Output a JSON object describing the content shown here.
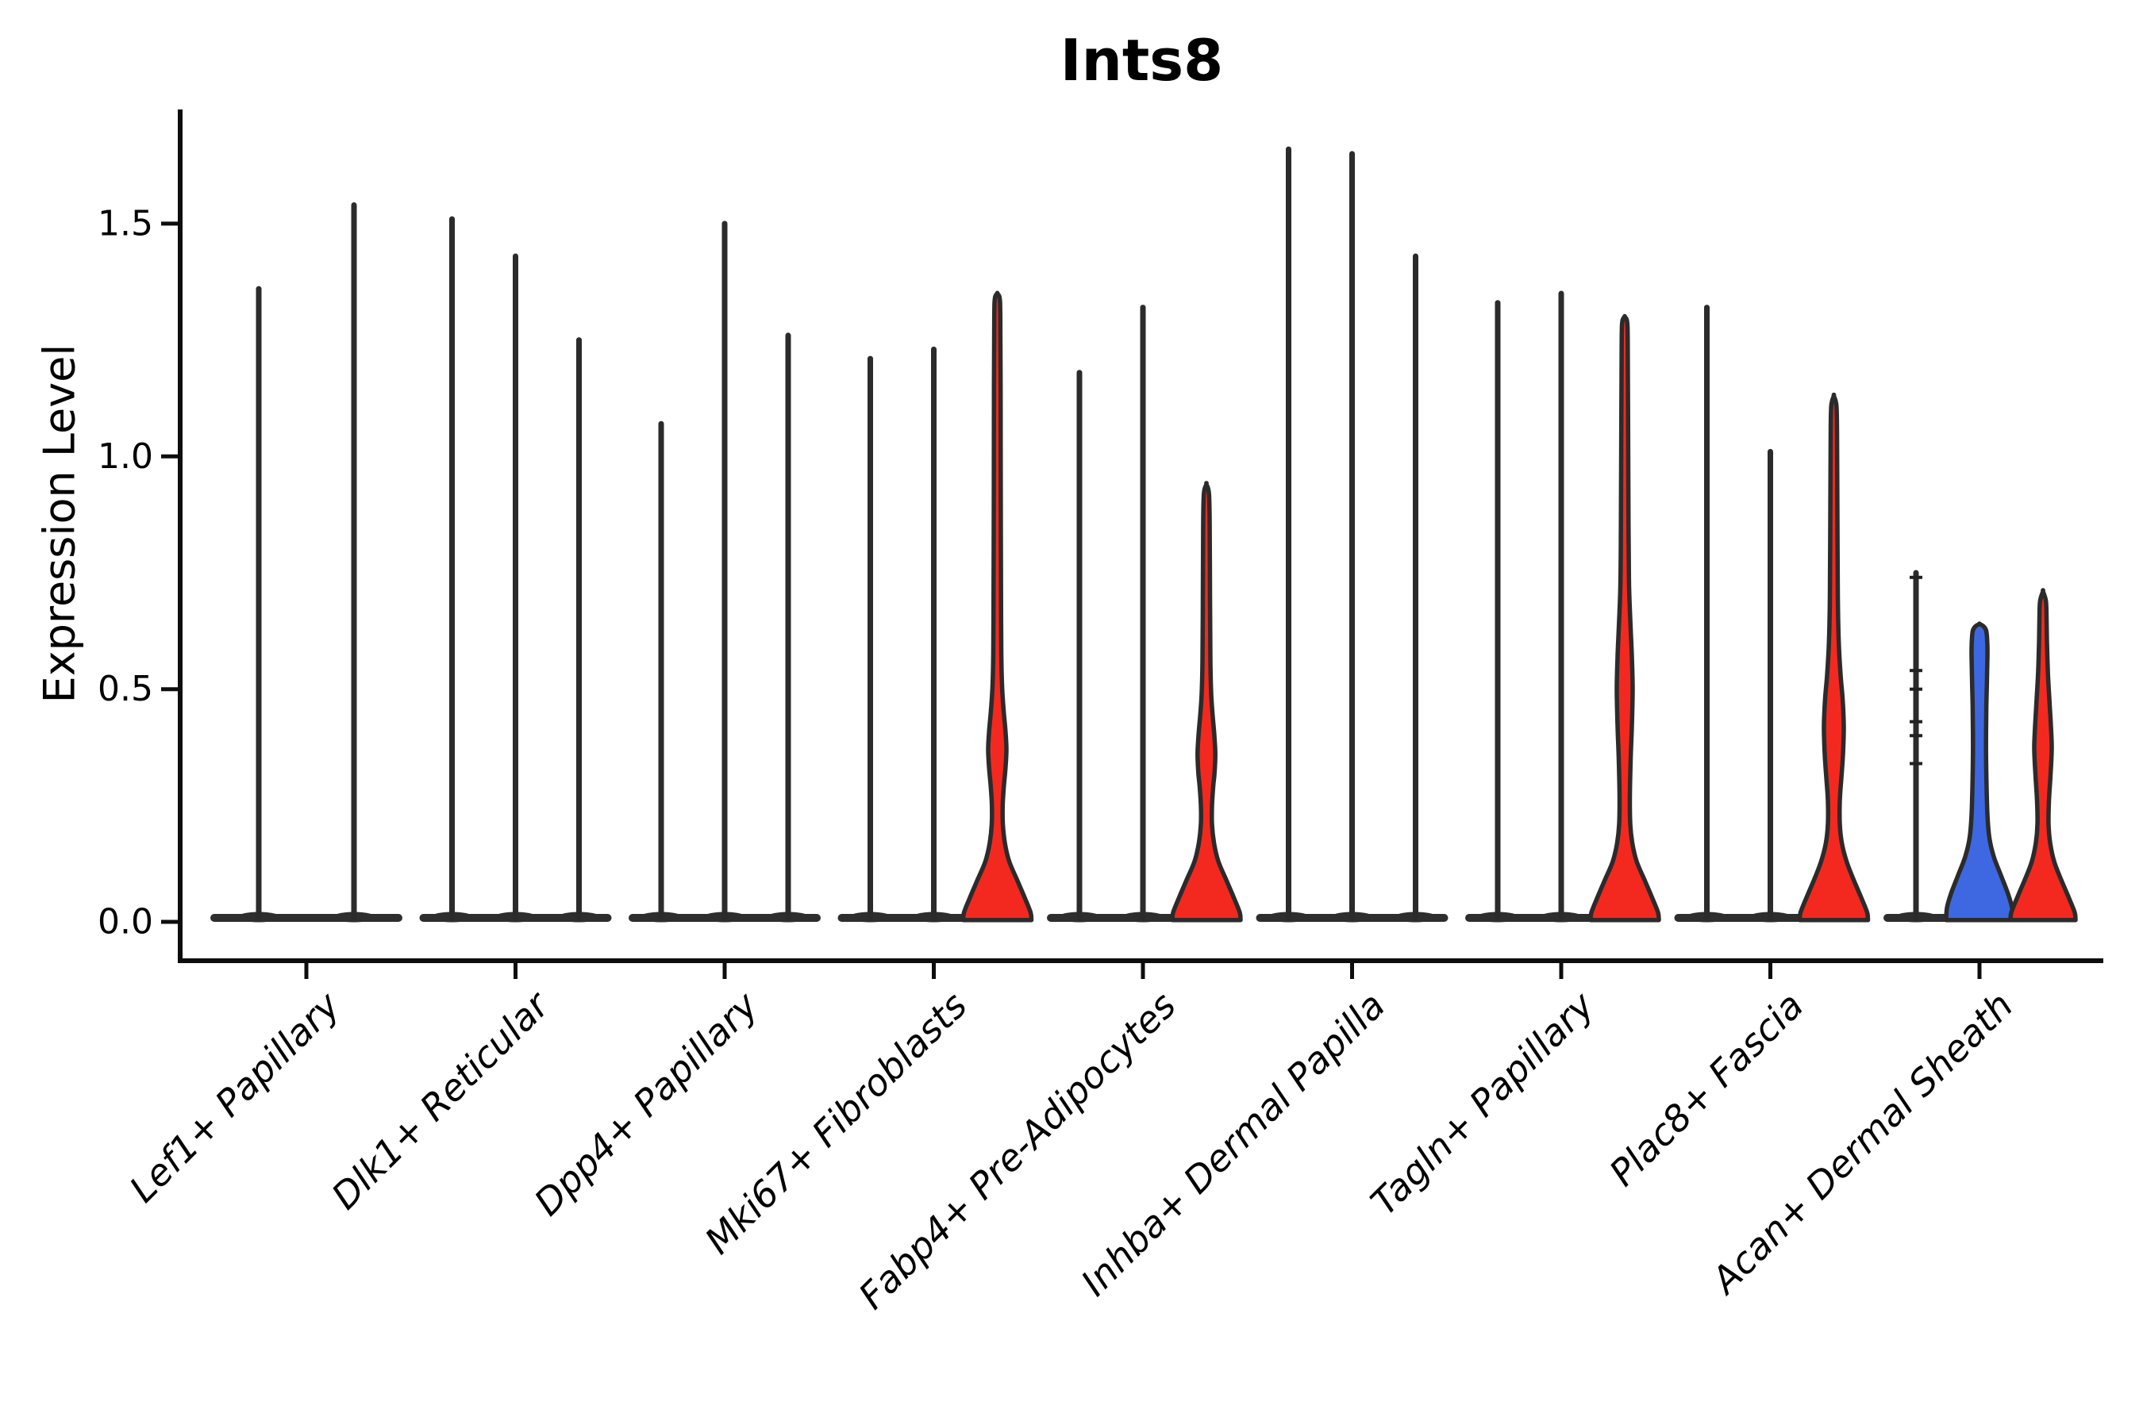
{
  "chart_data": {
    "type": "violin",
    "title": "Ints8",
    "ylabel": "Expression Level",
    "xlabel": "",
    "ylim": [
      0,
      1.74
    ],
    "yticks": [
      "0.0",
      "0.5",
      "1.0",
      "1.5"
    ],
    "ytick_values": [
      0,
      0.5,
      1.0,
      1.5
    ],
    "grid": false,
    "legend": "none",
    "categories": [
      "Lef1+ Papillary",
      "Dlk1+ Reticular",
      "Dpp4+ Papillary",
      "Mki67+ Fibroblasts",
      "Fabp4+ Pre-Adipocytes",
      "Inhba+ Dermal Papilla",
      "Tagln+ Papillary",
      "Plac8+ Fascia",
      "Acan+ Dermal Sheath"
    ],
    "colors": {
      "red": "#f3291f",
      "blue": "#3e68e1",
      "outline": "#2b2b2b",
      "axis": "#0d0d0d",
      "baseline_bar": "#2e2e2e",
      "text": "#000000",
      "background": "#ffffff"
    },
    "groups": [
      {
        "category": "Lef1+ Papillary",
        "violins": [
          {
            "max": 1.36,
            "fill": "none"
          },
          {
            "max": 1.54,
            "fill": "none"
          }
        ]
      },
      {
        "category": "Dlk1+ Reticular",
        "violins": [
          {
            "max": 1.51,
            "fill": "none"
          },
          {
            "max": 1.43,
            "fill": "none"
          },
          {
            "max": 1.25,
            "fill": "none"
          }
        ]
      },
      {
        "category": "Dpp4+ Papillary",
        "violins": [
          {
            "max": 1.07,
            "fill": "none"
          },
          {
            "max": 1.5,
            "fill": "none"
          },
          {
            "max": 1.26,
            "fill": "none"
          }
        ]
      },
      {
        "category": "Mki67+ Fibroblasts",
        "violins": [
          {
            "max": 1.21,
            "fill": "none"
          },
          {
            "max": 1.23,
            "fill": "none"
          },
          {
            "max": 1.35,
            "fill": "red",
            "profile": [
              [
                0.004,
                43
              ],
              [
                0.02,
                42
              ],
              [
                0.05,
                35
              ],
              [
                0.09,
                25
              ],
              [
                0.13,
                15
              ],
              [
                0.17,
                9.5
              ],
              [
                0.21,
                7
              ],
              [
                0.25,
                6.8
              ],
              [
                0.29,
                8.2
              ],
              [
                0.33,
                10.3
              ],
              [
                0.37,
                11.5
              ],
              [
                0.41,
                10.3
              ],
              [
                0.45,
                8.2
              ],
              [
                0.5,
                6.2
              ],
              [
                0.56,
                5.2
              ],
              [
                0.65,
                4.8
              ],
              [
                0.9,
                4.4
              ],
              [
                1.15,
                4.2
              ],
              [
                1.3,
                3.8
              ],
              [
                1.34,
                3
              ],
              [
                1.35,
                0
              ]
            ]
          }
        ]
      },
      {
        "category": "Fabp4+ Pre-Adipocytes",
        "violins": [
          {
            "max": 1.18,
            "fill": "none"
          },
          {
            "max": 1.32,
            "fill": "none"
          },
          {
            "max": 0.94,
            "fill": "red",
            "profile": [
              [
                0.004,
                43
              ],
              [
                0.02,
                42
              ],
              [
                0.05,
                35
              ],
              [
                0.09,
                25
              ],
              [
                0.13,
                15
              ],
              [
                0.17,
                9.5
              ],
              [
                0.21,
                7
              ],
              [
                0.25,
                7
              ],
              [
                0.29,
                8.5
              ],
              [
                0.32,
                10.2
              ],
              [
                0.36,
                11.2
              ],
              [
                0.4,
                10
              ],
              [
                0.44,
                8
              ],
              [
                0.49,
                6
              ],
              [
                0.56,
                5
              ],
              [
                0.7,
                4.5
              ],
              [
                0.85,
                4.1
              ],
              [
                0.92,
                3.2
              ],
              [
                0.94,
                0
              ]
            ]
          }
        ]
      },
      {
        "category": "Inhba+ Dermal Papilla",
        "violins": [
          {
            "max": 1.66,
            "fill": "none"
          },
          {
            "max": 1.65,
            "fill": "none"
          },
          {
            "max": 1.43,
            "fill": "none"
          }
        ]
      },
      {
        "category": "Tagln+ Papillary",
        "violins": [
          {
            "max": 1.33,
            "fill": "none"
          },
          {
            "max": 1.35,
            "fill": "none"
          },
          {
            "max": 1.3,
            "fill": "red",
            "profile": [
              [
                0.004,
                43
              ],
              [
                0.02,
                42
              ],
              [
                0.05,
                35
              ],
              [
                0.09,
                25
              ],
              [
                0.13,
                15
              ],
              [
                0.17,
                9.5
              ],
              [
                0.21,
                7
              ],
              [
                0.27,
                6.5
              ],
              [
                0.35,
                7.5
              ],
              [
                0.42,
                9
              ],
              [
                0.5,
                10
              ],
              [
                0.57,
                9
              ],
              [
                0.63,
                7.5
              ],
              [
                0.72,
                5.5
              ],
              [
                0.85,
                4.8
              ],
              [
                1.1,
                4.2
              ],
              [
                1.25,
                3.8
              ],
              [
                1.29,
                3
              ],
              [
                1.3,
                0
              ]
            ]
          }
        ]
      },
      {
        "category": "Plac8+ Fascia",
        "violins": [
          {
            "max": 1.32,
            "fill": "none"
          },
          {
            "max": 1.01,
            "fill": "none"
          },
          {
            "max": 1.13,
            "fill": "red",
            "profile": [
              [
                0.004,
                43
              ],
              [
                0.02,
                42
              ],
              [
                0.05,
                35
              ],
              [
                0.09,
                25
              ],
              [
                0.13,
                16
              ],
              [
                0.17,
                10
              ],
              [
                0.21,
                7.5
              ],
              [
                0.26,
                7.5
              ],
              [
                0.31,
                9.5
              ],
              [
                0.36,
                11.5
              ],
              [
                0.42,
                12.5
              ],
              [
                0.48,
                11
              ],
              [
                0.53,
                8.5
              ],
              [
                0.6,
                6.2
              ],
              [
                0.7,
                5
              ],
              [
                0.9,
                4.4
              ],
              [
                1.05,
                4
              ],
              [
                1.11,
                3.2
              ],
              [
                1.13,
                0
              ]
            ]
          }
        ]
      },
      {
        "category": "Acan+ Dermal Sheath",
        "violins": [
          {
            "max": 0.75,
            "fill": "none",
            "points": [
              0.74,
              0.54,
              0.5,
              0.43,
              0.4,
              0.34
            ]
          },
          {
            "max": 0.64,
            "fill": "blue",
            "profile": [
              [
                0.004,
                42
              ],
              [
                0.03,
                41
              ],
              [
                0.06,
                36
              ],
              [
                0.1,
                27
              ],
              [
                0.14,
                18
              ],
              [
                0.18,
                12.5
              ],
              [
                0.23,
                10
              ],
              [
                0.3,
                8.8
              ],
              [
                0.38,
                8.2
              ],
              [
                0.46,
                8.6
              ],
              [
                0.52,
                9.4
              ],
              [
                0.57,
                10
              ],
              [
                0.6,
                9.8
              ],
              [
                0.625,
                8.5
              ],
              [
                0.635,
                5
              ],
              [
                0.64,
                0
              ]
            ]
          },
          {
            "max": 0.71,
            "fill": "red",
            "profile": [
              [
                0.004,
                41
              ],
              [
                0.02,
                40
              ],
              [
                0.05,
                33
              ],
              [
                0.09,
                23
              ],
              [
                0.13,
                14
              ],
              [
                0.17,
                9
              ],
              [
                0.21,
                7
              ],
              [
                0.26,
                7.5
              ],
              [
                0.31,
                9.3
              ],
              [
                0.35,
                10.6
              ],
              [
                0.38,
                11
              ],
              [
                0.42,
                10
              ],
              [
                0.47,
                8.3
              ],
              [
                0.53,
                6.3
              ],
              [
                0.6,
                5
              ],
              [
                0.66,
                4.4
              ],
              [
                0.69,
                3.6
              ],
              [
                0.71,
                0
              ]
            ]
          }
        ]
      }
    ]
  }
}
